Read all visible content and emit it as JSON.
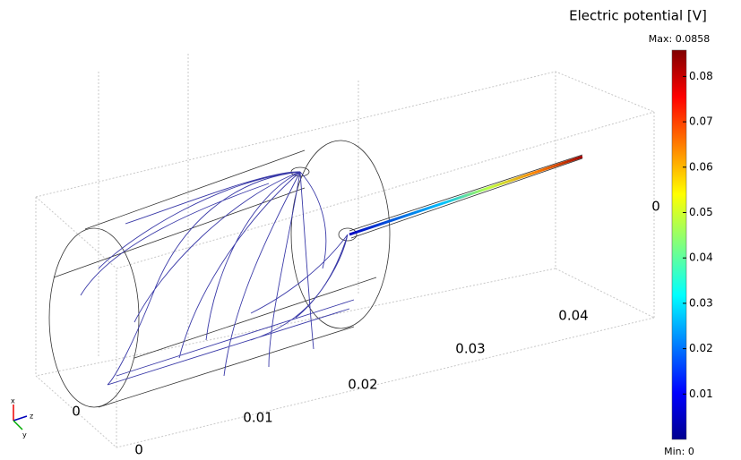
{
  "colorbar": {
    "title": "Electric potential [V]",
    "max": {
      "value": 0.0858,
      "label": "Max: 0.0858"
    },
    "min": {
      "value": 0,
      "label": "Min: 0"
    },
    "ticks": [
      0.01,
      0.02,
      0.03,
      0.04,
      0.05,
      0.06,
      0.07,
      0.08
    ]
  },
  "axis_labels": [
    "0",
    "0.01",
    "0.02",
    "0.03",
    "0.04",
    "0",
    "0"
  ]
}
